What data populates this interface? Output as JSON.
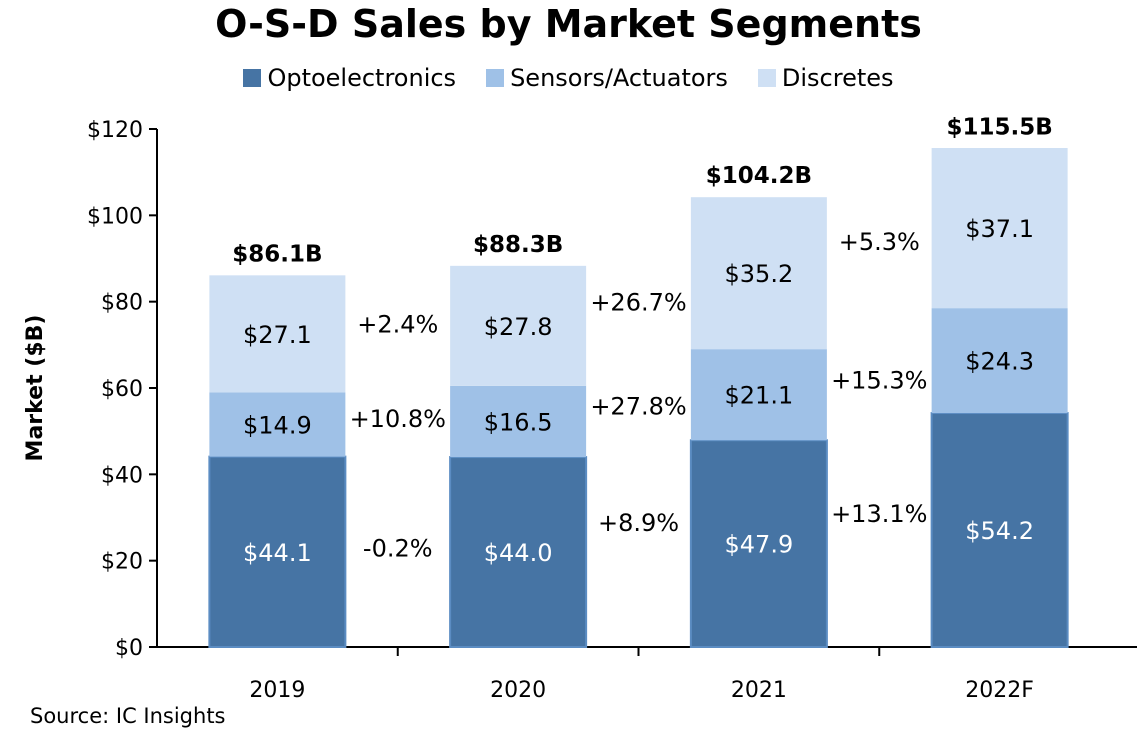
{
  "chart_data": {
    "type": "bar",
    "stacked": true,
    "title": "O-S-D Sales by Market Segments",
    "xlabel": "",
    "ylabel": "Market ($B)",
    "ylim": [
      0,
      120
    ],
    "yticks": [
      0,
      20,
      40,
      60,
      80,
      100,
      120
    ],
    "ytick_labels": [
      "$0",
      "$20",
      "$40",
      "$60",
      "$80",
      "$100",
      "$120"
    ],
    "categories": [
      "2019",
      "2020",
      "2021",
      "2022F"
    ],
    "series": [
      {
        "name": "Optoelectronics",
        "color": "#4674a4",
        "label_color": "#ffffff",
        "values": [
          44.1,
          44.0,
          47.9,
          54.2
        ],
        "labels": [
          "$44.1",
          "$44.0",
          "$47.9",
          "$54.2"
        ]
      },
      {
        "name": "Sensors/Actuators",
        "color": "#9fc1e7",
        "label_color": "#000000",
        "values": [
          14.9,
          16.5,
          21.1,
          24.3
        ],
        "labels": [
          "$14.9",
          "$16.5",
          "$21.1",
          "$24.3"
        ]
      },
      {
        "name": "Discretes",
        "color": "#cfe0f4",
        "label_color": "#000000",
        "values": [
          27.1,
          27.8,
          35.2,
          37.1
        ],
        "labels": [
          "$27.1",
          "$27.8",
          "$35.2",
          "$37.1"
        ]
      }
    ],
    "totals": [
      86.1,
      88.3,
      104.2,
      115.5
    ],
    "total_labels": [
      "$86.1B",
      "$88.3B",
      "$104.2B",
      "$115.5B"
    ],
    "growth_annotations": [
      {
        "between": [
          "2019",
          "2020"
        ],
        "series": "Optoelectronics",
        "label": "-0.2%",
        "y_value": 23
      },
      {
        "between": [
          "2019",
          "2020"
        ],
        "series": "Sensors/Actuators",
        "label": "+10.8%",
        "y_value": 53
      },
      {
        "between": [
          "2019",
          "2020"
        ],
        "series": "Discretes",
        "label": "+2.4%",
        "y_value": 75
      },
      {
        "between": [
          "2020",
          "2021"
        ],
        "series": "Optoelectronics",
        "label": "+8.9%",
        "y_value": 29
      },
      {
        "between": [
          "2020",
          "2021"
        ],
        "series": "Sensors/Actuators",
        "label": "+27.8%",
        "y_value": 56
      },
      {
        "between": [
          "2020",
          "2021"
        ],
        "series": "Discretes",
        "label": "+26.7%",
        "y_value": 80
      },
      {
        "between": [
          "2021",
          "2022F"
        ],
        "series": "Optoelectronics",
        "label": "+13.1%",
        "y_value": 31
      },
      {
        "between": [
          "2021",
          "2022F"
        ],
        "series": "Sensors/Actuators",
        "label": "+15.3%",
        "y_value": 62
      },
      {
        "between": [
          "2021",
          "2022F"
        ],
        "series": "Discretes",
        "label": "+5.3%",
        "y_value": 94
      }
    ],
    "legend_position": "top-center",
    "grid": false,
    "source": "Source: IC Insights"
  }
}
